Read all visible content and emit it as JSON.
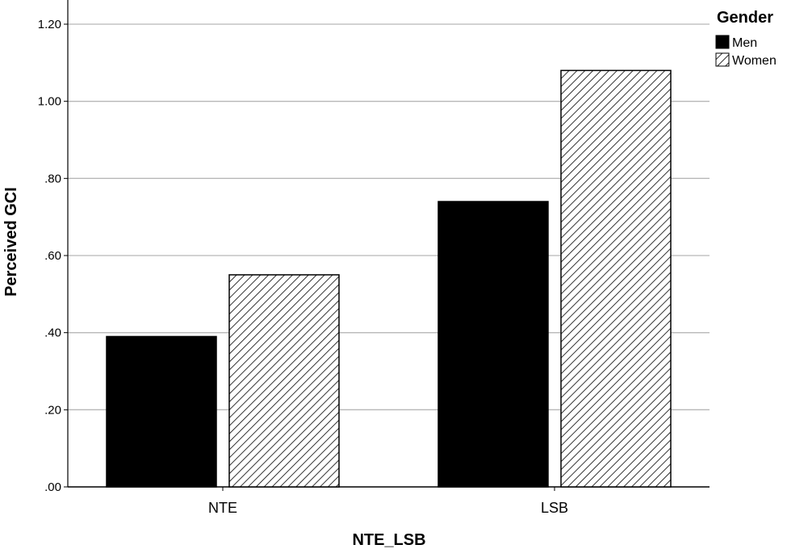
{
  "chart_data": {
    "type": "bar",
    "categories": [
      "NTE",
      "LSB"
    ],
    "series": [
      {
        "name": "Men",
        "values": [
          0.39,
          0.74
        ],
        "fill": "solid",
        "color": "#000000"
      },
      {
        "name": "Women",
        "values": [
          0.55,
          1.08
        ],
        "fill": "hatched",
        "color": "#000000"
      }
    ],
    "xlabel": "NTE_LSB",
    "ylabel": "Perceived GCI",
    "ylim": [
      0,
      1.2
    ],
    "yticks": [
      {
        "value": 0.0,
        "label": ".00"
      },
      {
        "value": 0.2,
        "label": ".20"
      },
      {
        "value": 0.4,
        "label": ".40"
      },
      {
        "value": 0.6,
        "label": ".60"
      },
      {
        "value": 0.8,
        "label": ".80"
      },
      {
        "value": 1.0,
        "label": "1.00"
      },
      {
        "value": 1.2,
        "label": "1.20"
      }
    ],
    "grid": true,
    "legend": {
      "title": "Gender",
      "position": "top-right"
    }
  }
}
